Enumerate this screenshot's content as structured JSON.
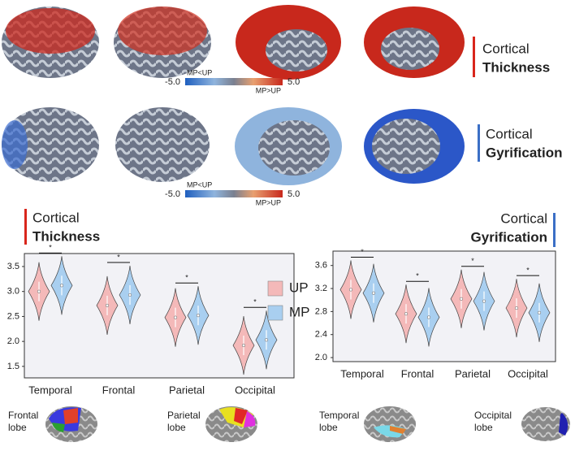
{
  "brain_maps": [
    {
      "title_line1": "Cortical",
      "title_line2": "Thickness",
      "colorbar": {
        "min_label": "-5.0",
        "max_label": "5.0",
        "low_label": "MP<UP",
        "high_label": "MP>UP"
      }
    },
    {
      "title_line1": "Cortical",
      "title_line2": "Gyrification",
      "colorbar": {
        "min_label": "-5.0",
        "max_label": "5.0",
        "low_label": "MP<UP",
        "high_label": "MP>UP"
      }
    }
  ],
  "chart_data": [
    {
      "type": "violin",
      "title_line1": "Cortical",
      "title_line2": "Thickness",
      "categories": [
        "Temporal",
        "Frontal",
        "Parietal",
        "Occipital"
      ],
      "series": [
        {
          "name": "UP",
          "color": "#f4b9b9",
          "values": [
            3.0,
            2.72,
            2.48,
            1.92
          ]
        },
        {
          "name": "MP",
          "color": "#a9cff0",
          "values": [
            3.12,
            2.93,
            2.52,
            2.03
          ]
        }
      ],
      "significance": [
        "*",
        "*",
        "*",
        "*"
      ],
      "ylim": [
        1.27,
        3.76
      ],
      "yticks": [
        1.5,
        {
          "value": 2.0,
          "label": "2.0"
        },
        2.5,
        {
          "value": 3.0,
          "label": "3.0"
        },
        3.5
      ]
    },
    {
      "type": "violin",
      "title_line1": "Cortical",
      "title_line2": "Gyrification",
      "categories": [
        "Temporal",
        "Frontal",
        "Parietal",
        "Occipital"
      ],
      "series": [
        {
          "name": "UP",
          "color": "#f4b9b9",
          "values": [
            3.18,
            2.76,
            3.02,
            2.86
          ]
        },
        {
          "name": "MP",
          "color": "#a9cff0",
          "values": [
            3.12,
            2.7,
            2.98,
            2.78
          ]
        }
      ],
      "significance": [
        "*",
        "*",
        "*",
        "*"
      ],
      "ylim": [
        1.93,
        3.85
      ],
      "yticks": [
        {
          "value": 2.0,
          "label": "2.0"
        },
        2.4,
        2.8,
        3.2,
        3.6
      ]
    }
  ],
  "lobes": [
    {
      "line1": "Frontal",
      "line2": "lobe"
    },
    {
      "line1": "Parietal",
      "line2": "lobe"
    },
    {
      "line1": "Temporal",
      "line2": "lobe"
    },
    {
      "line1": "Occipital",
      "line2": "lobe"
    }
  ]
}
